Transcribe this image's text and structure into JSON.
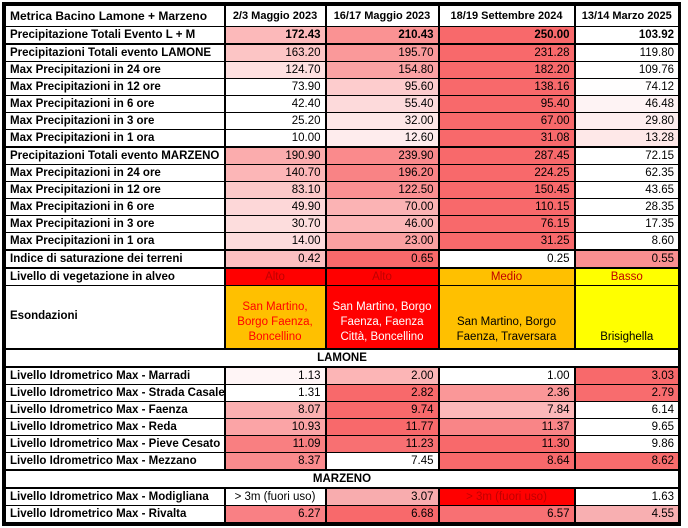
{
  "header": {
    "metric_label": "Metrica Bacino Lamone + Marzeno",
    "events": [
      "2/3 Maggio 2023",
      "16/17 Maggio 2023",
      "18/19 Settembre 2024",
      "13/14 Marzo 2025"
    ]
  },
  "color_scale": {
    "min_color": "#FFFFFF",
    "max_color": "#F8696B",
    "note": "per-row white-to-red conditional formatting"
  },
  "status_colors": {
    "red": "#FF0000",
    "orange": "#FFC000",
    "yellow": "#FFFF00",
    "dark_red_text": "#C00000",
    "white_text": "#FFFFFF",
    "black_text": "#000000"
  },
  "rows": [
    {
      "id": "prec-totali-evento-lm",
      "type": "gradient",
      "label": "Precipitazione Totali Evento L + M",
      "values": [
        172.43,
        210.43,
        250.0,
        103.92
      ],
      "bold_values": true
    },
    {
      "id": "prec-totali-lamone",
      "type": "gradient",
      "label": "Precipitazioni Totali evento LAMONE",
      "values": [
        163.2,
        195.7,
        231.28,
        119.8
      ],
      "thick_top": true
    },
    {
      "id": "max-prec-24h-lamone",
      "type": "gradient",
      "label": "Max Precipitazioni in 24 ore",
      "values": [
        124.7,
        154.8,
        182.2,
        109.76
      ]
    },
    {
      "id": "max-prec-12h-lamone",
      "type": "gradient",
      "label": "Max Precipitazioni in 12 ore",
      "values": [
        73.9,
        95.6,
        138.16,
        74.12
      ]
    },
    {
      "id": "max-prec-6h-lamone",
      "type": "gradient",
      "label": "Max Precipitazioni in 6 ore",
      "values": [
        42.4,
        55.4,
        95.4,
        46.48
      ]
    },
    {
      "id": "max-prec-3h-lamone",
      "type": "gradient",
      "label": "Max Precipitazioni in 3 ore",
      "values": [
        25.2,
        32.0,
        67.0,
        29.8
      ]
    },
    {
      "id": "max-prec-1h-lamone",
      "type": "gradient",
      "label": "Max Precipitazioni in 1 ora",
      "values": [
        10.0,
        12.6,
        31.08,
        13.28
      ]
    },
    {
      "id": "prec-totali-marzeno",
      "type": "gradient",
      "label": "Precipitazioni Totali evento MARZENO",
      "values": [
        190.9,
        239.9,
        287.45,
        72.15
      ],
      "thick_top": true
    },
    {
      "id": "max-prec-24h-marzeno",
      "type": "gradient",
      "label": "Max Precipitazioni in 24 ore",
      "values": [
        140.7,
        196.2,
        224.25,
        62.35
      ]
    },
    {
      "id": "max-prec-12h-marzeno",
      "type": "gradient",
      "label": "Max Precipitazioni in 12 ore",
      "values": [
        83.1,
        122.5,
        150.45,
        43.65
      ]
    },
    {
      "id": "max-prec-6h-marzeno",
      "type": "gradient",
      "label": "Max Precipitazioni in 6 ore",
      "values": [
        49.9,
        70.0,
        110.15,
        28.35
      ]
    },
    {
      "id": "max-prec-3h-marzeno",
      "type": "gradient",
      "label": "Max Precipitazioni in 3 ore",
      "values": [
        30.7,
        46.0,
        76.15,
        17.35
      ]
    },
    {
      "id": "max-prec-1h-marzeno",
      "type": "gradient",
      "label": "Max Precipitazioni in 1 ora",
      "values": [
        14.0,
        23.0,
        31.25,
        8.6
      ]
    },
    {
      "id": "indice-saturazione",
      "type": "gradient",
      "label": "Indice di saturazione dei terreni",
      "values": [
        0.42,
        0.65,
        0.25,
        0.55
      ],
      "thick_top": true
    },
    {
      "id": "livello-vegetazione",
      "type": "cells",
      "label": "Livello di vegetazione in alveo",
      "thick_top": true,
      "cells": [
        {
          "text": "Alto",
          "bg": "#FF0000",
          "fg": "#C00000",
          "align": "center"
        },
        {
          "text": "Alto",
          "bg": "#FF0000",
          "fg": "#C00000",
          "align": "center"
        },
        {
          "text": "Medio",
          "bg": "#FFC000",
          "fg": "#C00000",
          "align": "center"
        },
        {
          "text": "Basso",
          "bg": "#FFFF00",
          "fg": "#C00000",
          "align": "center"
        }
      ]
    },
    {
      "id": "esondazioni",
      "type": "cells",
      "label": "Esondazioni",
      "tall": true,
      "cells": [
        {
          "text": "San Martino, Borgo Faenza, Boncellino",
          "bg": "#FFC000",
          "fg": "#FF0000",
          "align": "center"
        },
        {
          "text": "San Martino, Borgo Faenza, Faenza Città, Boncellino",
          "bg": "#FF0000",
          "fg": "#FFFFFF",
          "align": "center"
        },
        {
          "text": "San Martino, Borgo Faenza, Traversara",
          "bg": "#FFC000",
          "fg": "#000000",
          "align": "center"
        },
        {
          "text": "Brisighella",
          "bg": "#FFFF00",
          "fg": "#000000",
          "align": "center"
        }
      ]
    },
    {
      "id": "section-lamone",
      "type": "banner",
      "label": "LAMONE"
    },
    {
      "id": "idro-max-marradi",
      "type": "gradient",
      "label": "Livello Idrometrico Max - Marradi",
      "values": [
        1.13,
        2.0,
        1.0,
        3.03
      ]
    },
    {
      "id": "idro-max-strada-casale",
      "type": "gradient",
      "label": "Livello Idrometrico Max - Strada Casale",
      "values": [
        1.31,
        2.82,
        2.36,
        2.79
      ]
    },
    {
      "id": "idro-max-faenza",
      "type": "gradient",
      "label": "Livello Idrometrico Max - Faenza",
      "values": [
        8.07,
        9.74,
        7.84,
        6.14
      ]
    },
    {
      "id": "idro-max-reda",
      "type": "gradient",
      "label": "Livello Idrometrico Max - Reda",
      "values": [
        10.93,
        11.77,
        11.37,
        9.65
      ]
    },
    {
      "id": "idro-max-pieve-cesato",
      "type": "gradient",
      "label": "Livello Idrometrico Max - Pieve Cesato",
      "values": [
        11.09,
        11.23,
        11.3,
        9.86
      ]
    },
    {
      "id": "idro-max-mezzano",
      "type": "gradient",
      "label": "Livello Idrometrico Max - Mezzano",
      "values": [
        8.37,
        7.45,
        8.64,
        8.62
      ]
    },
    {
      "id": "section-marzeno",
      "type": "banner",
      "label": "MARZENO"
    },
    {
      "id": "idro-max-modigliana",
      "type": "cells",
      "label": "Livello Idrometrico Max - Modigliana",
      "cells": [
        {
          "text": "> 3m (fuori uso)",
          "bg": "#FFFFFF",
          "fg": "#000000",
          "align": "center"
        },
        {
          "value": 3.07,
          "bg": "#F8ACAE",
          "align": "right"
        },
        {
          "text": "> 3m (fuori uso)",
          "bg": "#FF0000",
          "fg": "#C00000",
          "align": "center"
        },
        {
          "value": 1.63,
          "bg": "#FFFFFF",
          "align": "right"
        }
      ]
    },
    {
      "id": "idro-max-rivalta",
      "type": "cells",
      "label": "Livello Idrometrico Max - Rivalta",
      "cells": [
        {
          "value": 6.27,
          "bg": "#F98084",
          "align": "right"
        },
        {
          "value": 6.68,
          "bg": "#F8696B",
          "align": "right"
        },
        {
          "value": 6.57,
          "bg": "#F87073",
          "align": "right"
        },
        {
          "value": 4.55,
          "bg": "#F8AFB1",
          "align": "right"
        }
      ]
    }
  ]
}
